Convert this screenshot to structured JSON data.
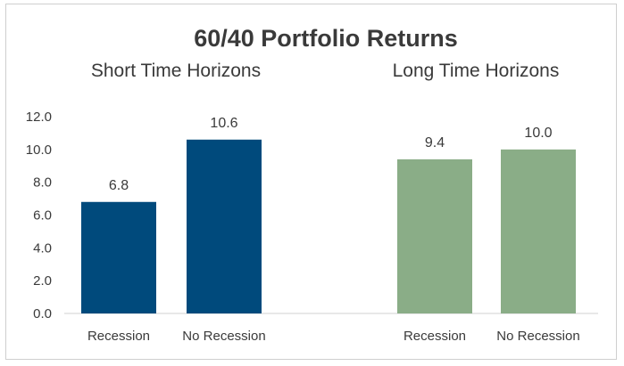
{
  "chart_data": {
    "type": "bar",
    "title": "60/40 Portfolio Returns",
    "ylim": [
      0,
      12
    ],
    "yticks": [
      "0.0",
      "2.0",
      "4.0",
      "6.0",
      "8.0",
      "10.0",
      "12.0"
    ],
    "grid": false,
    "groups": [
      {
        "title": "Short Time Horizons",
        "color": "#004a7c",
        "categories": [
          "Recession",
          "No Recession"
        ],
        "values": [
          6.8,
          10.6
        ],
        "labels": [
          "6.8",
          "10.6"
        ]
      },
      {
        "title": "Long Time Horizons",
        "color": "#8aad87",
        "categories": [
          "Recession",
          "No Recession"
        ],
        "values": [
          9.4,
          10.0
        ],
        "labels": [
          "9.4",
          "10.0"
        ]
      }
    ]
  }
}
